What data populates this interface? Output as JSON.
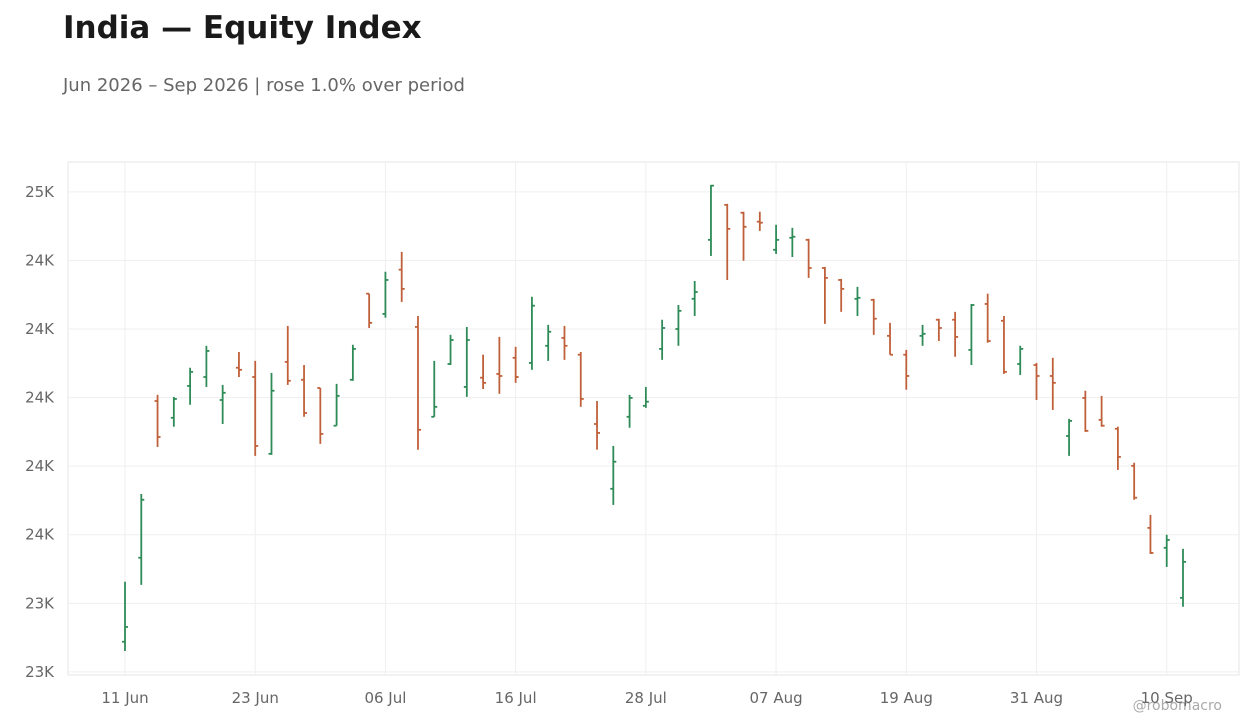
{
  "chart_data": {
    "type": "ohlc",
    "title": "India — Equity Index",
    "subtitle": "Jun 2026 – Sep 2026 | rose 1.0% over period",
    "watermark": "@robomacro",
    "up_color": "#2e8b57",
    "down_color": "#c0603a",
    "grid": true,
    "categories": [
      "11 Jun",
      null,
      null,
      null,
      null,
      null,
      null,
      null,
      "23 Jun",
      null,
      null,
      null,
      null,
      null,
      null,
      null,
      "06 Jul",
      null,
      null,
      null,
      null,
      null,
      null,
      null,
      "16 Jul",
      null,
      null,
      null,
      null,
      null,
      null,
      null,
      "28 Jul",
      null,
      null,
      null,
      null,
      null,
      null,
      null,
      "07 Aug",
      null,
      null,
      null,
      null,
      null,
      null,
      null,
      "19 Aug",
      null,
      null,
      null,
      null,
      null,
      null,
      null,
      "31 Aug",
      null,
      null,
      null,
      null,
      null,
      null,
      null,
      "10 Sep",
      null
    ],
    "open": [
      23288,
      23533,
      23990,
      23941,
      24034,
      24060,
      23993,
      24087,
      24060,
      23836,
      24104,
      24052,
      24028,
      23918,
      24052,
      24303,
      24244,
      24373,
      24206,
      23944,
      24098,
      24031,
      24058,
      24069,
      24116,
      24101,
      24151,
      24174,
      24125,
      23923,
      23734,
      23944,
      23976,
      24142,
      24200,
      24288,
      24460,
      24562,
      24539,
      24513,
      24431,
      24466,
      24460,
      24378,
      24343,
      24288,
      24285,
      24180,
      24125,
      24180,
      24227,
      24227,
      24139,
      24273,
      24224,
      24098,
      24095,
      24063,
      23888,
      23999,
      23935,
      23909,
      23801,
      23620,
      23562,
      23416
    ],
    "high": [
      23463,
      23719,
      24008,
      24002,
      24087,
      24151,
      24037,
      24133,
      24107,
      24072,
      24209,
      24095,
      24028,
      24040,
      24154,
      24303,
      24367,
      24425,
      24238,
      24107,
      24183,
      24206,
      24125,
      24177,
      24148,
      24294,
      24212,
      24209,
      24133,
      23990,
      23859,
      24008,
      24031,
      24227,
      24270,
      24340,
      24620,
      24565,
      24542,
      24542,
      24504,
      24495,
      24463,
      24381,
      24346,
      24323,
      24288,
      24218,
      24139,
      24212,
      24230,
      24250,
      24273,
      24303,
      24238,
      24151,
      24101,
      24116,
      23938,
      24020,
      24005,
      23915,
      23810,
      23658,
      23600,
      23559
    ],
    "low": [
      23261,
      23454,
      23856,
      23915,
      23979,
      24031,
      23923,
      24060,
      23830,
      23833,
      24037,
      23944,
      23865,
      23918,
      24049,
      24203,
      24233,
      24279,
      23848,
      23944,
      24095,
      24002,
      24025,
      24011,
      24043,
      24081,
      24107,
      24110,
      23973,
      23848,
      23687,
      23912,
      23970,
      24110,
      24151,
      24238,
      24413,
      24343,
      24399,
      24486,
      24419,
      24410,
      24349,
      24215,
      24250,
      24238,
      24183,
      24125,
      24023,
      24151,
      24165,
      24119,
      24095,
      24160,
      24069,
      24066,
      23993,
      23964,
      23830,
      23900,
      23915,
      23789,
      23702,
      23544,
      23506,
      23390
    ],
    "close": [
      23331,
      23702,
      23885,
      23996,
      24075,
      24136,
      24014,
      24081,
      23859,
      24020,
      24049,
      23955,
      23894,
      24005,
      24142,
      24218,
      24343,
      24317,
      23906,
      23973,
      24168,
      24168,
      24043,
      24063,
      24060,
      24268,
      24192,
      24151,
      23996,
      23897,
      23813,
      23999,
      23988,
      24203,
      24253,
      24308,
      24618,
      24492,
      24498,
      24510,
      24460,
      24469,
      24378,
      24349,
      24317,
      24291,
      24230,
      24125,
      24063,
      24186,
      24203,
      24177,
      24270,
      24165,
      24075,
      24142,
      24063,
      24043,
      23932,
      23903,
      23918,
      23827,
      23708,
      23547,
      23585,
      23521
    ],
    "ylim": [
      23191,
      24687
    ],
    "yticks": [
      {
        "value": 23200,
        "label": "23K"
      },
      {
        "value": 23400,
        "label": "23K"
      },
      {
        "value": 23600,
        "label": "24K"
      },
      {
        "value": 23800,
        "label": "24K"
      },
      {
        "value": 24000,
        "label": "24K"
      },
      {
        "value": 24200,
        "label": "24K"
      },
      {
        "value": 24400,
        "label": "24K"
      },
      {
        "value": 24600,
        "label": "25K"
      }
    ]
  }
}
